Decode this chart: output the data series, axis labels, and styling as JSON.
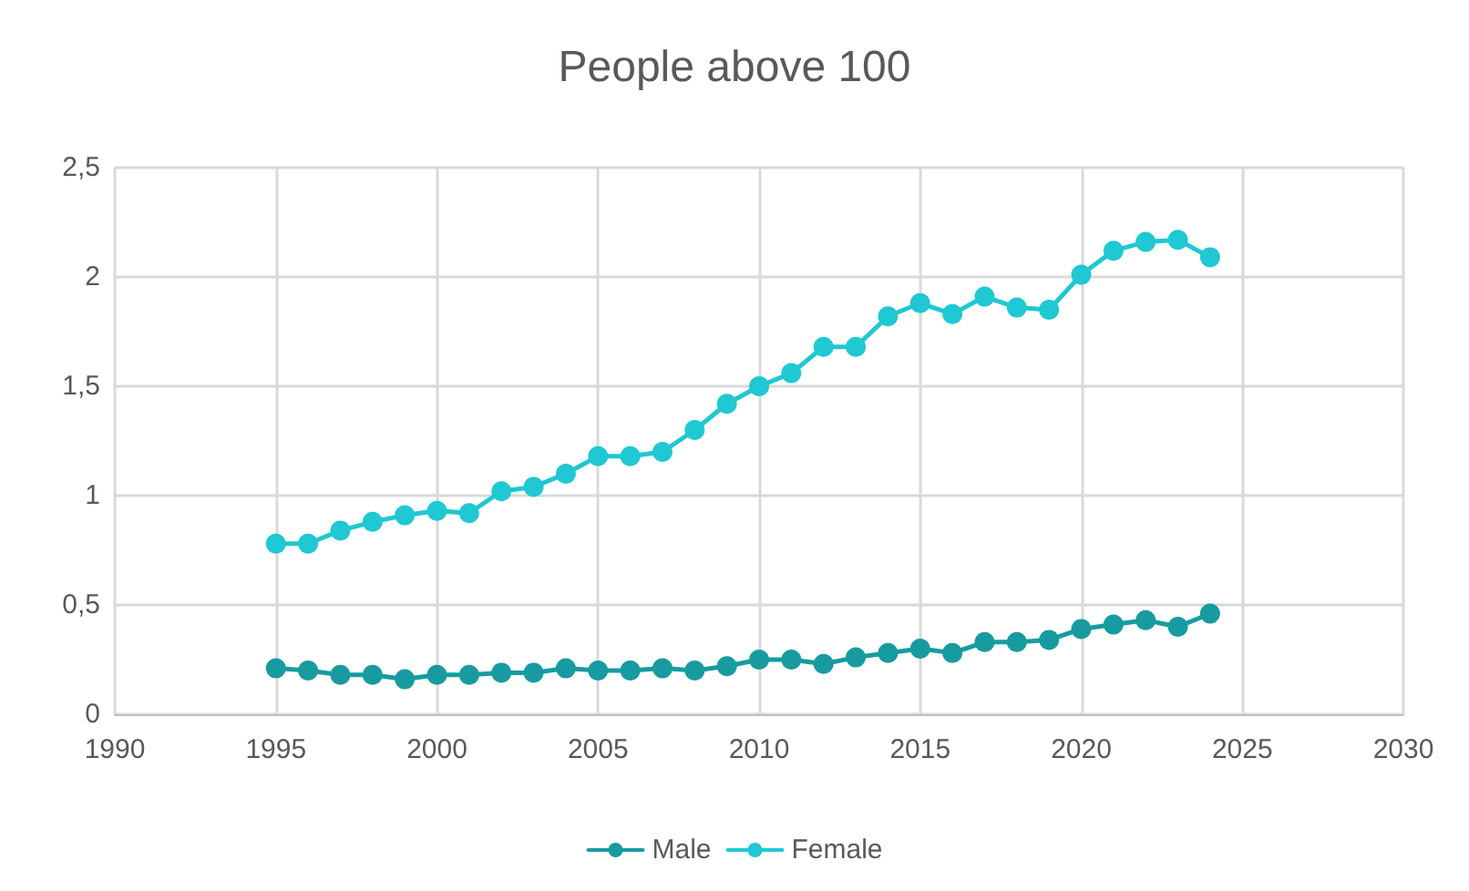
{
  "chart_data": {
    "type": "line",
    "title": "People above 100",
    "x": [
      1995,
      1996,
      1997,
      1998,
      1999,
      2000,
      2001,
      2002,
      2003,
      2004,
      2005,
      2006,
      2007,
      2008,
      2009,
      2010,
      2011,
      2012,
      2013,
      2014,
      2015,
      2016,
      2017,
      2018,
      2019,
      2020,
      2021,
      2022,
      2023,
      2024
    ],
    "series": [
      {
        "name": "Male",
        "color": "#179ba0",
        "values": [
          0.21,
          0.2,
          0.18,
          0.18,
          0.16,
          0.18,
          0.18,
          0.19,
          0.19,
          0.21,
          0.2,
          0.2,
          0.21,
          0.2,
          0.22,
          0.25,
          0.25,
          0.23,
          0.26,
          0.28,
          0.3,
          0.28,
          0.33,
          0.33,
          0.34,
          0.39,
          0.41,
          0.43,
          0.4,
          0.46
        ]
      },
      {
        "name": "Female",
        "color": "#1fc8d2",
        "values": [
          0.78,
          0.78,
          0.84,
          0.88,
          0.91,
          0.93,
          0.92,
          1.02,
          1.04,
          1.1,
          1.18,
          1.18,
          1.2,
          1.3,
          1.42,
          1.5,
          1.56,
          1.68,
          1.68,
          1.82,
          1.88,
          1.83,
          1.91,
          1.86,
          1.85,
          2.01,
          2.12,
          2.16,
          2.17,
          2.09
        ]
      }
    ],
    "xlim": [
      1990,
      2030
    ],
    "xticks": [
      1990,
      1995,
      2000,
      2005,
      2010,
      2015,
      2020,
      2025,
      2030
    ],
    "ylim": [
      0,
      2.5
    ],
    "yticks": [
      0,
      {
        "value": 0.5,
        "label": "0,5"
      },
      1,
      {
        "value": 1.5,
        "label": "1,5"
      },
      2,
      {
        "value": 2.5,
        "label": "2,5"
      }
    ],
    "grid": true,
    "legend": "bottom",
    "marker": "circle",
    "line_style": "solid"
  }
}
